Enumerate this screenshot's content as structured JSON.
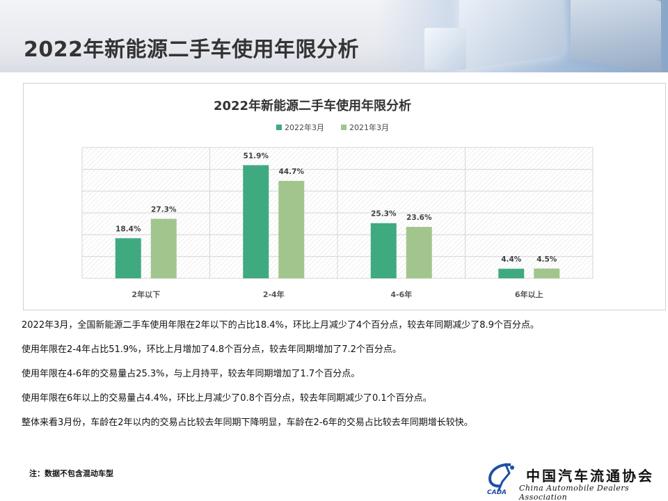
{
  "header": {
    "title": "2022年新能源二手车使用年限分析"
  },
  "chart_data": {
    "type": "bar",
    "title": "2022年新能源二手车使用年限分析",
    "xlabel": "",
    "ylabel": "",
    "ylim": [
      0,
      60
    ],
    "grid": true,
    "legend_position": "top-center",
    "show_y_axis_labels": false,
    "categories": [
      "2年以下",
      "2-4年",
      "4-6年",
      "6年以上"
    ],
    "series": [
      {
        "name": "2022年3月",
        "values": [
          18.4,
          51.9,
          25.3,
          4.4
        ],
        "labels": [
          "18.4%",
          "51.9%",
          "25.3%",
          "4.4%"
        ],
        "color": "#3faa80"
      },
      {
        "name": "2021年3月",
        "values": [
          27.3,
          44.7,
          23.6,
          4.5
        ],
        "labels": [
          "27.3%",
          "44.7%",
          "23.6%",
          "4.5%"
        ],
        "color": "#a2c58e"
      }
    ]
  },
  "body": {
    "paragraphs": [
      "2022年3月，全国新能源二手车使用年限在2年以下的占比18.4%，环比上月减少了4个百分点，较去年同期减少了8.9个百分点。",
      "使用年限在2-4年占比51.9%，环比上月增加了4.8个百分点，较去年同期增加了7.2个百分点。",
      "使用年限在4-6年的交易量占25.3%，与上月持平，较去年同期增加了1.7个百分点。",
      "使用年限在6年以上的交易量占4.4%，环比上月减少了0.8个百分点，较去年同期减少了0.1个百分点。",
      "整体来看3月份，车龄在2年以内的交易占比较去年同期下降明显，车龄在2-6年的交易占比较去年同期增长较快。"
    ],
    "note": "注：数据不包含混动车型"
  },
  "logo": {
    "cn_name": "中国汽车流通协会",
    "en_name": "China Automobile Dealers Association",
    "mark_text": "CADA"
  },
  "colors": {
    "series_2022": "#3faa80",
    "series_2021": "#a2c58e",
    "title_text": "#333333",
    "logo_blue": "#1f4fa3"
  }
}
